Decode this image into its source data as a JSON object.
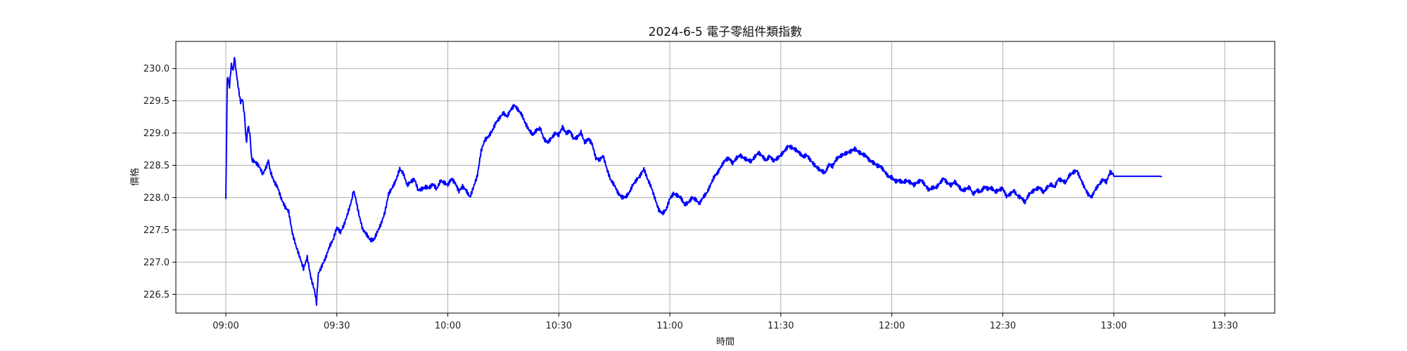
{
  "chart_data": {
    "type": "line",
    "title": "2024-6-5 電子零組件類指數",
    "xlabel": "時間",
    "ylabel": "價格",
    "x_ticks": [
      "09:00",
      "09:30",
      "10:00",
      "10:30",
      "11:00",
      "11:30",
      "12:00",
      "12:30",
      "13:00",
      "13:30"
    ],
    "y_ticks": [
      "226.5",
      "227.0",
      "227.5",
      "228.0",
      "228.5",
      "229.0",
      "229.5",
      "230.0"
    ],
    "xlim_minutes": [
      -13.5,
      283.5
    ],
    "ylim": [
      226.21,
      230.42
    ],
    "grid": true,
    "series": [
      {
        "name": "電子零組件類指數",
        "color": "#0000ff",
        "points": [
          [
            0,
            227.95
          ],
          [
            0.4,
            229.8
          ],
          [
            1,
            229.75
          ],
          [
            1.5,
            230.1
          ],
          [
            2,
            230.0
          ],
          [
            2.3,
            230.22
          ],
          [
            3,
            229.9
          ],
          [
            3.5,
            229.7
          ],
          [
            4,
            229.5
          ],
          [
            4.5,
            229.55
          ],
          [
            5,
            229.3
          ],
          [
            5.3,
            229.0
          ],
          [
            5.6,
            228.85
          ],
          [
            6,
            229.1
          ],
          [
            6.5,
            228.95
          ],
          [
            7,
            228.55
          ],
          [
            8,
            228.5
          ],
          [
            9,
            228.45
          ],
          [
            10,
            228.35
          ],
          [
            11,
            228.5
          ],
          [
            11.5,
            228.6
          ],
          [
            12,
            228.45
          ],
          [
            13,
            228.3
          ],
          [
            14,
            228.2
          ],
          [
            15,
            228.0
          ],
          [
            16,
            227.85
          ],
          [
            17,
            227.75
          ],
          [
            18,
            227.4
          ],
          [
            19,
            227.2
          ],
          [
            20,
            227.05
          ],
          [
            21,
            226.9
          ],
          [
            22,
            227.1
          ],
          [
            23,
            226.8
          ],
          [
            24,
            226.6
          ],
          [
            24.5,
            226.4
          ],
          [
            25,
            226.85
          ],
          [
            26,
            226.95
          ],
          [
            27,
            227.05
          ],
          [
            28,
            227.2
          ],
          [
            29,
            227.3
          ],
          [
            30,
            227.5
          ],
          [
            31,
            227.45
          ],
          [
            32,
            227.6
          ],
          [
            33,
            227.8
          ],
          [
            34,
            228.0
          ],
          [
            34.5,
            228.15
          ],
          [
            35,
            228.05
          ],
          [
            36,
            227.75
          ],
          [
            37,
            227.5
          ],
          [
            38,
            227.4
          ],
          [
            39,
            227.3
          ],
          [
            40,
            227.3
          ],
          [
            41,
            227.45
          ],
          [
            42,
            227.6
          ],
          [
            43,
            227.8
          ],
          [
            44,
            228.1
          ],
          [
            45,
            228.2
          ],
          [
            46,
            228.3
          ],
          [
            47,
            228.45
          ],
          [
            48,
            228.35
          ],
          [
            49,
            228.15
          ],
          [
            50,
            228.2
          ],
          [
            51,
            228.25
          ],
          [
            52,
            228.1
          ],
          [
            53,
            228.15
          ],
          [
            54,
            228.2
          ],
          [
            55,
            228.2
          ],
          [
            56,
            228.25
          ],
          [
            57,
            228.15
          ],
          [
            58,
            228.25
          ],
          [
            59,
            228.2
          ],
          [
            60,
            228.15
          ],
          [
            61,
            228.25
          ],
          [
            62,
            228.2
          ],
          [
            63,
            228.1
          ],
          [
            64,
            228.2
          ],
          [
            65,
            228.15
          ],
          [
            66,
            228.05
          ],
          [
            67,
            228.2
          ],
          [
            68,
            228.35
          ],
          [
            69,
            228.7
          ],
          [
            70,
            228.85
          ],
          [
            71,
            228.9
          ],
          [
            72,
            229.0
          ],
          [
            73,
            229.15
          ],
          [
            74,
            229.25
          ],
          [
            75,
            229.35
          ],
          [
            76,
            229.3
          ],
          [
            77,
            229.4
          ],
          [
            78,
            229.45
          ],
          [
            79,
            229.35
          ],
          [
            80,
            229.25
          ],
          [
            81,
            229.1
          ],
          [
            82,
            229.0
          ],
          [
            83,
            228.95
          ],
          [
            84,
            229.05
          ],
          [
            85,
            229.1
          ],
          [
            86,
            228.95
          ],
          [
            87,
            228.9
          ],
          [
            88,
            228.95
          ],
          [
            89,
            229.0
          ],
          [
            90,
            228.95
          ],
          [
            91,
            229.05
          ],
          [
            92,
            228.95
          ],
          [
            93,
            229.0
          ],
          [
            94,
            228.9
          ],
          [
            95,
            228.95
          ],
          [
            96,
            229.05
          ],
          [
            97,
            228.9
          ],
          [
            98,
            228.95
          ],
          [
            99,
            228.85
          ],
          [
            100,
            228.6
          ],
          [
            101,
            228.55
          ],
          [
            102,
            228.6
          ],
          [
            103,
            228.4
          ],
          [
            104,
            228.25
          ],
          [
            105,
            228.2
          ],
          [
            106,
            228.1
          ],
          [
            107,
            228.05
          ],
          [
            108,
            228.05
          ],
          [
            109,
            228.1
          ],
          [
            110,
            228.2
          ],
          [
            111,
            228.25
          ],
          [
            112,
            228.3
          ],
          [
            113,
            228.4
          ],
          [
            114,
            228.25
          ],
          [
            115,
            228.15
          ],
          [
            116,
            228.0
          ],
          [
            117,
            227.85
          ],
          [
            118,
            227.8
          ],
          [
            119,
            227.85
          ],
          [
            120,
            228.0
          ],
          [
            121,
            228.05
          ],
          [
            122,
            228.0
          ],
          [
            123,
            227.95
          ],
          [
            124,
            227.85
          ],
          [
            125,
            227.9
          ],
          [
            126,
            228.0
          ],
          [
            127,
            228.0
          ],
          [
            128,
            227.95
          ],
          [
            129,
            228.05
          ],
          [
            130,
            228.1
          ],
          [
            131,
            228.2
          ],
          [
            132,
            228.3
          ],
          [
            133,
            228.35
          ],
          [
            134,
            228.45
          ],
          [
            135,
            228.55
          ],
          [
            136,
            228.6
          ],
          [
            137,
            228.55
          ],
          [
            138,
            228.65
          ],
          [
            139,
            228.7
          ],
          [
            140,
            228.65
          ],
          [
            141,
            228.6
          ],
          [
            142,
            228.55
          ],
          [
            143,
            228.6
          ],
          [
            144,
            228.65
          ],
          [
            145,
            228.6
          ],
          [
            146,
            228.55
          ],
          [
            147,
            228.65
          ],
          [
            148,
            228.6
          ],
          [
            149,
            228.65
          ],
          [
            150,
            228.7
          ],
          [
            151,
            228.75
          ],
          [
            152,
            228.8
          ],
          [
            153,
            228.75
          ],
          [
            154,
            228.7
          ],
          [
            155,
            228.65
          ],
          [
            156,
            228.6
          ],
          [
            157,
            228.65
          ],
          [
            158,
            228.6
          ],
          [
            159,
            228.55
          ],
          [
            160,
            228.5
          ],
          [
            161,
            228.45
          ],
          [
            162,
            228.4
          ],
          [
            163,
            228.5
          ],
          [
            164,
            228.45
          ],
          [
            165,
            228.55
          ],
          [
            166,
            228.6
          ],
          [
            167,
            228.65
          ],
          [
            168,
            228.7
          ],
          [
            169,
            228.75
          ],
          [
            170,
            228.8
          ],
          [
            171,
            228.75
          ],
          [
            172,
            228.7
          ],
          [
            173,
            228.65
          ],
          [
            174,
            228.55
          ],
          [
            175,
            228.5
          ],
          [
            176,
            228.45
          ],
          [
            177,
            228.45
          ],
          [
            178,
            228.4
          ],
          [
            179,
            228.35
          ],
          [
            180,
            228.35
          ],
          [
            181,
            228.3
          ],
          [
            182,
            228.3
          ],
          [
            183,
            228.25
          ],
          [
            184,
            228.25
          ],
          [
            185,
            228.2
          ],
          [
            186,
            228.15
          ],
          [
            187,
            228.2
          ],
          [
            188,
            228.25
          ],
          [
            189,
            228.2
          ],
          [
            190,
            228.15
          ],
          [
            191,
            228.2
          ],
          [
            192,
            228.2
          ],
          [
            193,
            228.25
          ],
          [
            194,
            228.3
          ],
          [
            195,
            228.2
          ],
          [
            196,
            228.15
          ],
          [
            197,
            228.2
          ],
          [
            198,
            228.15
          ],
          [
            199,
            228.1
          ],
          [
            200,
            228.15
          ],
          [
            201,
            228.2
          ],
          [
            202,
            228.1
          ],
          [
            203,
            228.15
          ],
          [
            204,
            228.1
          ],
          [
            205,
            228.15
          ],
          [
            206,
            228.1
          ],
          [
            207,
            228.1
          ],
          [
            208,
            228.05
          ],
          [
            209,
            228.1
          ],
          [
            210,
            228.15
          ],
          [
            211,
            228.05
          ],
          [
            212,
            228.1
          ],
          [
            213,
            228.15
          ],
          [
            214,
            228.05
          ],
          [
            215,
            228.0
          ],
          [
            216,
            227.9
          ],
          [
            217,
            228.0
          ],
          [
            218,
            228.05
          ],
          [
            219,
            228.1
          ],
          [
            220,
            228.15
          ],
          [
            221,
            228.1
          ],
          [
            222,
            228.2
          ],
          [
            223,
            228.25
          ],
          [
            224,
            228.2
          ],
          [
            225,
            228.3
          ],
          [
            226,
            228.25
          ],
          [
            227,
            228.2
          ],
          [
            228,
            228.3
          ],
          [
            229,
            228.35
          ],
          [
            230,
            228.4
          ],
          [
            231,
            228.3
          ],
          [
            232,
            228.2
          ],
          [
            233,
            228.1
          ],
          [
            234,
            228.05
          ],
          [
            235,
            228.15
          ],
          [
            236,
            228.2
          ],
          [
            237,
            228.25
          ],
          [
            238,
            228.2
          ],
          [
            239,
            228.35
          ],
          [
            240,
            228.33
          ],
          [
            250,
            228.33
          ],
          [
            252.5,
            228.33
          ],
          [
            253,
            228.32
          ]
        ]
      }
    ]
  }
}
